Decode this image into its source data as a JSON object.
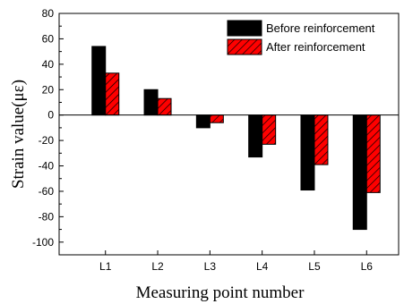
{
  "chart_data": {
    "type": "bar",
    "title": "",
    "xlabel": "Measuring point number",
    "ylabel": "Strain value(με)",
    "categories": [
      "L1",
      "L2",
      "L3",
      "L4",
      "L5",
      "L6"
    ],
    "ylim": [
      -110,
      80
    ],
    "yticks": [
      80,
      60,
      40,
      20,
      0,
      -20,
      -40,
      -60,
      -80,
      -100
    ],
    "grid": false,
    "legend_position": "top-right",
    "series": [
      {
        "name": "Before reinforcement",
        "values": [
          54,
          20,
          -10,
          -33,
          -59,
          -90
        ],
        "color": "#000000",
        "pattern": "solid"
      },
      {
        "name": "After reinforcement",
        "values": [
          33,
          13,
          -6,
          -23,
          -39,
          -61
        ],
        "color": "#ff0000",
        "pattern": "hatched"
      }
    ]
  }
}
